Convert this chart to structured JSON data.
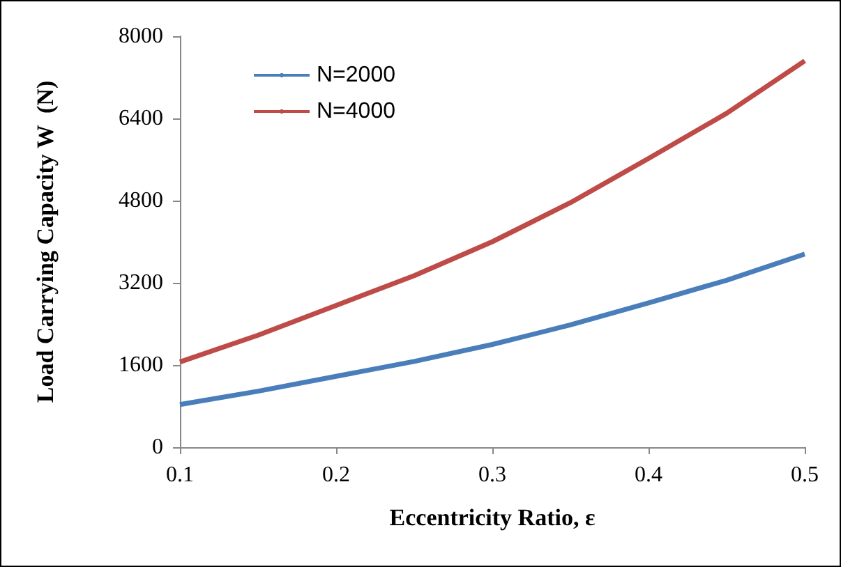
{
  "chart_data": {
    "type": "line",
    "xlabel": "Eccentricity Ratio, ε",
    "ylabel": "Load Carrying Capacity W  (N)",
    "x": [
      0.1,
      0.15,
      0.2,
      0.25,
      0.3,
      0.35,
      0.4,
      0.45,
      0.5
    ],
    "series": [
      {
        "name": "N=2000",
        "color": "#4a7ebb",
        "values": [
          830,
          1090,
          1380,
          1670,
          2000,
          2380,
          2810,
          3250,
          3760
        ]
      },
      {
        "name": "N=4000",
        "color": "#be4b48",
        "values": [
          1660,
          2180,
          2760,
          3340,
          4000,
          4760,
          5620,
          6500,
          7520
        ]
      }
    ],
    "xlim": [
      0.1,
      0.5
    ],
    "xticks": [
      0.1,
      0.2,
      0.3,
      0.4,
      0.5
    ],
    "ylim": [
      0,
      8000
    ],
    "yticks": [
      0,
      1600,
      3200,
      4800,
      6400,
      8000
    ],
    "grid": false,
    "legend": "top left",
    "marker": "none",
    "line_style": "solid"
  }
}
